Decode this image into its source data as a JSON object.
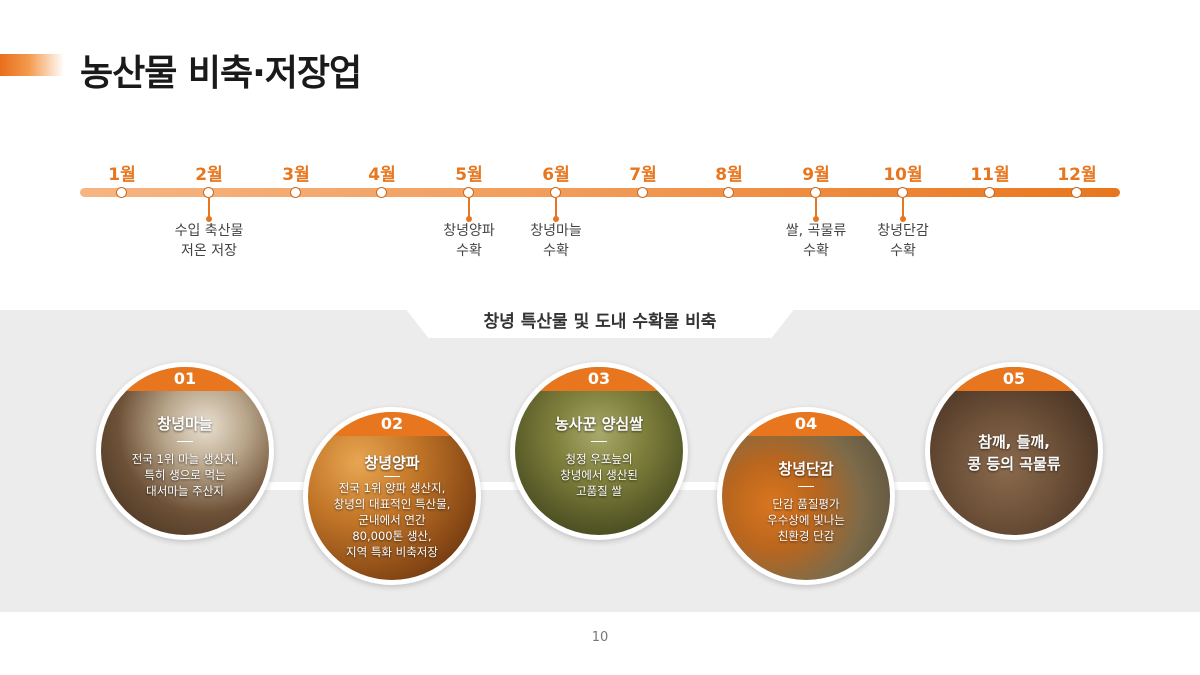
{
  "title": "농산물 비축·저장업",
  "timeline": {
    "months": [
      "1월",
      "2월",
      "3월",
      "4월",
      "5월",
      "6월",
      "7월",
      "8월",
      "9월",
      "10월",
      "11월",
      "12월"
    ],
    "events": [
      {
        "month_index": 1,
        "text": "수입 축산물\n저온 저장"
      },
      {
        "month_index": 4,
        "text": "창녕양파\n수확"
      },
      {
        "month_index": 5,
        "text": "창녕마늘\n수확"
      },
      {
        "month_index": 8,
        "text": "쌀, 곡물류\n수확"
      },
      {
        "month_index": 9,
        "text": "창녕단감\n수확"
      }
    ]
  },
  "section_title": "창녕 특산물 및 도내 수확물 비축",
  "items": [
    {
      "num": "01",
      "title": "창녕마늘",
      "desc": "전국 1위 마늘 생산지,\n특히 생으로 먹는\n대서마늘 주산지"
    },
    {
      "num": "02",
      "title": "창녕양파",
      "desc": "전국 1위 양파 생산지,\n창녕의 대표적인 특산물,\n군내에서 연간\n80,000톤 생산,\n지역 특화 비축저장"
    },
    {
      "num": "03",
      "title": "농사꾼 양심쌀",
      "desc": "청정 우포늪의\n창녕에서 생산된\n고품질 쌀"
    },
    {
      "num": "04",
      "title": "창녕단감",
      "desc": "단감 품질평가\n우수상에 빛나는\n친환경 단감"
    },
    {
      "num": "05",
      "title": "참깨, 들깨,\n콩 등의 곡물류",
      "desc": ""
    }
  ],
  "colors": {
    "accent": "#e8761e"
  },
  "page_number": "10"
}
